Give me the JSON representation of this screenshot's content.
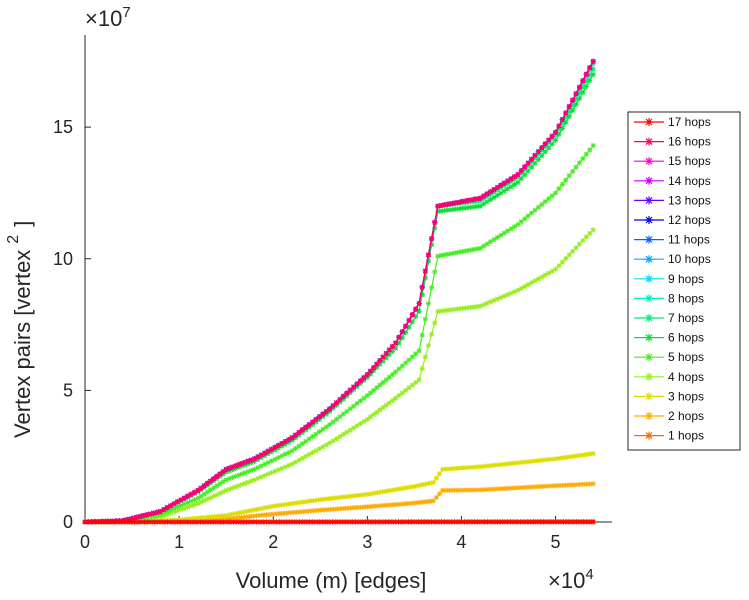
{
  "chart_data": {
    "type": "line",
    "xlabel": "Volume (m) [edges]",
    "ylabel": "Vertex pairs [vertex",
    "ylabel_superscript": "2",
    "ylabel_close": "]",
    "x_multiplier": "×10",
    "x_multiplier_exp": "4",
    "y_multiplier": "×10",
    "y_multiplier_exp": "7",
    "xlim": [
      0,
      5.6
    ],
    "ylim": [
      0,
      18.5
    ],
    "xticks": [
      0,
      1,
      2,
      3,
      4,
      5
    ],
    "xtick_labels": [
      "0",
      "1",
      "2",
      "3",
      "4",
      "5"
    ],
    "yticks": [
      0,
      5,
      10,
      15
    ],
    "ytick_labels": [
      "0",
      "5",
      "10",
      "15"
    ],
    "legend_position": "right",
    "series": [
      {
        "name": "17 hops",
        "color": "#ff0000",
        "values": [
          [
            0,
            0
          ],
          [
            5.4,
            0
          ]
        ]
      },
      {
        "name": "16 hops",
        "color": "#ff0066",
        "values": [
          [
            0,
            0
          ],
          [
            0.4,
            0.05
          ],
          [
            0.8,
            0.4
          ],
          [
            1.2,
            1.2
          ],
          [
            1.5,
            2.0
          ],
          [
            1.8,
            2.4
          ],
          [
            2.2,
            3.2
          ],
          [
            2.6,
            4.3
          ],
          [
            3.0,
            5.6
          ],
          [
            3.3,
            6.8
          ],
          [
            3.55,
            8.3
          ],
          [
            3.75,
            12.0
          ],
          [
            4.2,
            12.3
          ],
          [
            4.6,
            13.2
          ],
          [
            5.0,
            14.8
          ],
          [
            5.4,
            17.5
          ]
        ]
      },
      {
        "name": "15 hops",
        "color": "#ff00cc",
        "values": [
          [
            0,
            0
          ],
          [
            0.4,
            0.05
          ],
          [
            0.8,
            0.4
          ],
          [
            1.2,
            1.2
          ],
          [
            1.5,
            2.0
          ],
          [
            1.8,
            2.4
          ],
          [
            2.2,
            3.2
          ],
          [
            2.6,
            4.3
          ],
          [
            3.0,
            5.6
          ],
          [
            3.3,
            6.8
          ],
          [
            3.55,
            8.3
          ],
          [
            3.75,
            12.0
          ],
          [
            4.2,
            12.3
          ],
          [
            4.6,
            13.2
          ],
          [
            5.0,
            14.8
          ],
          [
            5.4,
            17.5
          ]
        ]
      },
      {
        "name": "14 hops",
        "color": "#cc00ff",
        "values": [
          [
            0,
            0
          ],
          [
            0.4,
            0.05
          ],
          [
            0.8,
            0.4
          ],
          [
            1.2,
            1.2
          ],
          [
            1.5,
            2.0
          ],
          [
            1.8,
            2.4
          ],
          [
            2.2,
            3.2
          ],
          [
            2.6,
            4.3
          ],
          [
            3.0,
            5.6
          ],
          [
            3.3,
            6.8
          ],
          [
            3.55,
            8.3
          ],
          [
            3.75,
            12.0
          ],
          [
            4.2,
            12.3
          ],
          [
            4.6,
            13.2
          ],
          [
            5.0,
            14.8
          ],
          [
            5.4,
            17.5
          ]
        ]
      },
      {
        "name": "13 hops",
        "color": "#6600ff",
        "values": [
          [
            0,
            0
          ],
          [
            0.4,
            0.05
          ],
          [
            0.8,
            0.4
          ],
          [
            1.2,
            1.2
          ],
          [
            1.5,
            2.0
          ],
          [
            1.8,
            2.4
          ],
          [
            2.2,
            3.2
          ],
          [
            2.6,
            4.3
          ],
          [
            3.0,
            5.6
          ],
          [
            3.3,
            6.8
          ],
          [
            3.55,
            8.3
          ],
          [
            3.75,
            12.0
          ],
          [
            4.2,
            12.3
          ],
          [
            4.6,
            13.2
          ],
          [
            5.0,
            14.8
          ],
          [
            5.4,
            17.5
          ]
        ]
      },
      {
        "name": "12 hops",
        "color": "#0000ff",
        "values": [
          [
            0,
            0
          ],
          [
            0.4,
            0.05
          ],
          [
            0.8,
            0.4
          ],
          [
            1.2,
            1.2
          ],
          [
            1.5,
            2.0
          ],
          [
            1.8,
            2.4
          ],
          [
            2.2,
            3.2
          ],
          [
            2.6,
            4.3
          ],
          [
            3.0,
            5.6
          ],
          [
            3.3,
            6.8
          ],
          [
            3.55,
            8.3
          ],
          [
            3.75,
            12.0
          ],
          [
            4.2,
            12.3
          ],
          [
            4.6,
            13.2
          ],
          [
            5.0,
            14.8
          ],
          [
            5.4,
            17.5
          ]
        ]
      },
      {
        "name": "11 hops",
        "color": "#0066ff",
        "values": [
          [
            0,
            0
          ],
          [
            0.4,
            0.05
          ],
          [
            0.8,
            0.4
          ],
          [
            1.2,
            1.2
          ],
          [
            1.5,
            2.0
          ],
          [
            1.8,
            2.4
          ],
          [
            2.2,
            3.2
          ],
          [
            2.6,
            4.3
          ],
          [
            3.0,
            5.6
          ],
          [
            3.3,
            6.8
          ],
          [
            3.55,
            8.3
          ],
          [
            3.75,
            12.0
          ],
          [
            4.2,
            12.3
          ],
          [
            4.6,
            13.2
          ],
          [
            5.0,
            14.8
          ],
          [
            5.4,
            17.5
          ]
        ]
      },
      {
        "name": "10 hops",
        "color": "#00aaff",
        "values": [
          [
            0,
            0
          ],
          [
            0.4,
            0.05
          ],
          [
            0.8,
            0.4
          ],
          [
            1.2,
            1.2
          ],
          [
            1.5,
            2.0
          ],
          [
            1.8,
            2.4
          ],
          [
            2.2,
            3.2
          ],
          [
            2.6,
            4.3
          ],
          [
            3.0,
            5.6
          ],
          [
            3.3,
            6.8
          ],
          [
            3.55,
            8.3
          ],
          [
            3.75,
            12.0
          ],
          [
            4.2,
            12.3
          ],
          [
            4.6,
            13.2
          ],
          [
            5.0,
            14.8
          ],
          [
            5.4,
            17.5
          ]
        ]
      },
      {
        "name": "9 hops",
        "color": "#00ddee",
        "values": [
          [
            0,
            0
          ],
          [
            0.4,
            0.05
          ],
          [
            0.8,
            0.4
          ],
          [
            1.2,
            1.2
          ],
          [
            1.5,
            2.0
          ],
          [
            1.8,
            2.4
          ],
          [
            2.2,
            3.2
          ],
          [
            2.6,
            4.3
          ],
          [
            3.0,
            5.6
          ],
          [
            3.3,
            6.8
          ],
          [
            3.55,
            8.3
          ],
          [
            3.75,
            12.0
          ],
          [
            4.2,
            12.3
          ],
          [
            4.6,
            13.2
          ],
          [
            5.0,
            14.8
          ],
          [
            5.4,
            17.5
          ]
        ]
      },
      {
        "name": "8 hops",
        "color": "#00eebb",
        "values": [
          [
            0,
            0
          ],
          [
            0.4,
            0.05
          ],
          [
            0.8,
            0.4
          ],
          [
            1.2,
            1.2
          ],
          [
            1.5,
            2.0
          ],
          [
            1.8,
            2.4
          ],
          [
            2.2,
            3.2
          ],
          [
            2.6,
            4.3
          ],
          [
            3.0,
            5.6
          ],
          [
            3.3,
            6.8
          ],
          [
            3.55,
            8.3
          ],
          [
            3.75,
            12.0
          ],
          [
            4.2,
            12.3
          ],
          [
            4.6,
            13.2
          ],
          [
            5.0,
            14.8
          ],
          [
            5.4,
            17.4
          ]
        ]
      },
      {
        "name": "7 hops",
        "color": "#00ee77",
        "values": [
          [
            0,
            0
          ],
          [
            0.4,
            0.05
          ],
          [
            0.8,
            0.4
          ],
          [
            1.2,
            1.2
          ],
          [
            1.5,
            2.0
          ],
          [
            1.8,
            2.4
          ],
          [
            2.2,
            3.2
          ],
          [
            2.6,
            4.3
          ],
          [
            3.0,
            5.6
          ],
          [
            3.3,
            6.8
          ],
          [
            3.55,
            8.3
          ],
          [
            3.75,
            12.0
          ],
          [
            4.2,
            12.2
          ],
          [
            4.6,
            13.1
          ],
          [
            5.0,
            14.7
          ],
          [
            5.4,
            17.2
          ]
        ]
      },
      {
        "name": "6 hops",
        "color": "#11dd33",
        "values": [
          [
            0,
            0
          ],
          [
            0.4,
            0.05
          ],
          [
            0.8,
            0.4
          ],
          [
            1.2,
            1.15
          ],
          [
            1.5,
            1.9
          ],
          [
            1.8,
            2.3
          ],
          [
            2.2,
            3.1
          ],
          [
            2.6,
            4.2
          ],
          [
            3.0,
            5.5
          ],
          [
            3.3,
            6.6
          ],
          [
            3.55,
            8.0
          ],
          [
            3.75,
            11.8
          ],
          [
            4.2,
            12.0
          ],
          [
            4.6,
            12.9
          ],
          [
            5.0,
            14.5
          ],
          [
            5.4,
            17.0
          ]
        ]
      },
      {
        "name": "5 hops",
        "color": "#44ee22",
        "values": [
          [
            0,
            0
          ],
          [
            0.4,
            0.03
          ],
          [
            0.8,
            0.3
          ],
          [
            1.2,
            0.9
          ],
          [
            1.5,
            1.6
          ],
          [
            1.8,
            2.0
          ],
          [
            2.2,
            2.7
          ],
          [
            2.6,
            3.7
          ],
          [
            3.0,
            4.8
          ],
          [
            3.3,
            5.7
          ],
          [
            3.55,
            6.5
          ],
          [
            3.75,
            10.1
          ],
          [
            4.2,
            10.4
          ],
          [
            4.6,
            11.3
          ],
          [
            5.0,
            12.5
          ],
          [
            5.4,
            14.3
          ]
        ]
      },
      {
        "name": "4 hops",
        "color": "#99ee22",
        "values": [
          [
            0,
            0
          ],
          [
            0.4,
            0.02
          ],
          [
            0.8,
            0.2
          ],
          [
            1.2,
            0.7
          ],
          [
            1.5,
            1.2
          ],
          [
            1.8,
            1.6
          ],
          [
            2.2,
            2.2
          ],
          [
            2.6,
            3.0
          ],
          [
            3.0,
            3.9
          ],
          [
            3.3,
            4.7
          ],
          [
            3.55,
            5.4
          ],
          [
            3.75,
            8.0
          ],
          [
            4.2,
            8.2
          ],
          [
            4.6,
            8.8
          ],
          [
            5.0,
            9.6
          ],
          [
            5.4,
            11.1
          ]
        ]
      },
      {
        "name": "3 hops",
        "color": "#dddd00",
        "values": [
          [
            0,
            0
          ],
          [
            0.5,
            0.02
          ],
          [
            1.0,
            0.08
          ],
          [
            1.5,
            0.25
          ],
          [
            2.0,
            0.6
          ],
          [
            2.5,
            0.85
          ],
          [
            3.0,
            1.05
          ],
          [
            3.5,
            1.35
          ],
          [
            3.7,
            1.5
          ],
          [
            3.8,
            2.0
          ],
          [
            4.2,
            2.1
          ],
          [
            4.6,
            2.25
          ],
          [
            5.0,
            2.4
          ],
          [
            5.4,
            2.6
          ]
        ]
      },
      {
        "name": "2 hops",
        "color": "#ffaa00",
        "values": [
          [
            0,
            0
          ],
          [
            0.5,
            0.01
          ],
          [
            1.0,
            0.04
          ],
          [
            1.5,
            0.12
          ],
          [
            2.0,
            0.3
          ],
          [
            2.5,
            0.45
          ],
          [
            3.0,
            0.58
          ],
          [
            3.5,
            0.72
          ],
          [
            3.7,
            0.8
          ],
          [
            3.8,
            1.2
          ],
          [
            4.2,
            1.22
          ],
          [
            4.6,
            1.3
          ],
          [
            5.0,
            1.38
          ],
          [
            5.4,
            1.45
          ]
        ]
      },
      {
        "name": "1 hops",
        "color": "#ff6600",
        "values": [
          [
            0,
            0
          ],
          [
            5.4,
            0.02
          ]
        ]
      }
    ]
  }
}
